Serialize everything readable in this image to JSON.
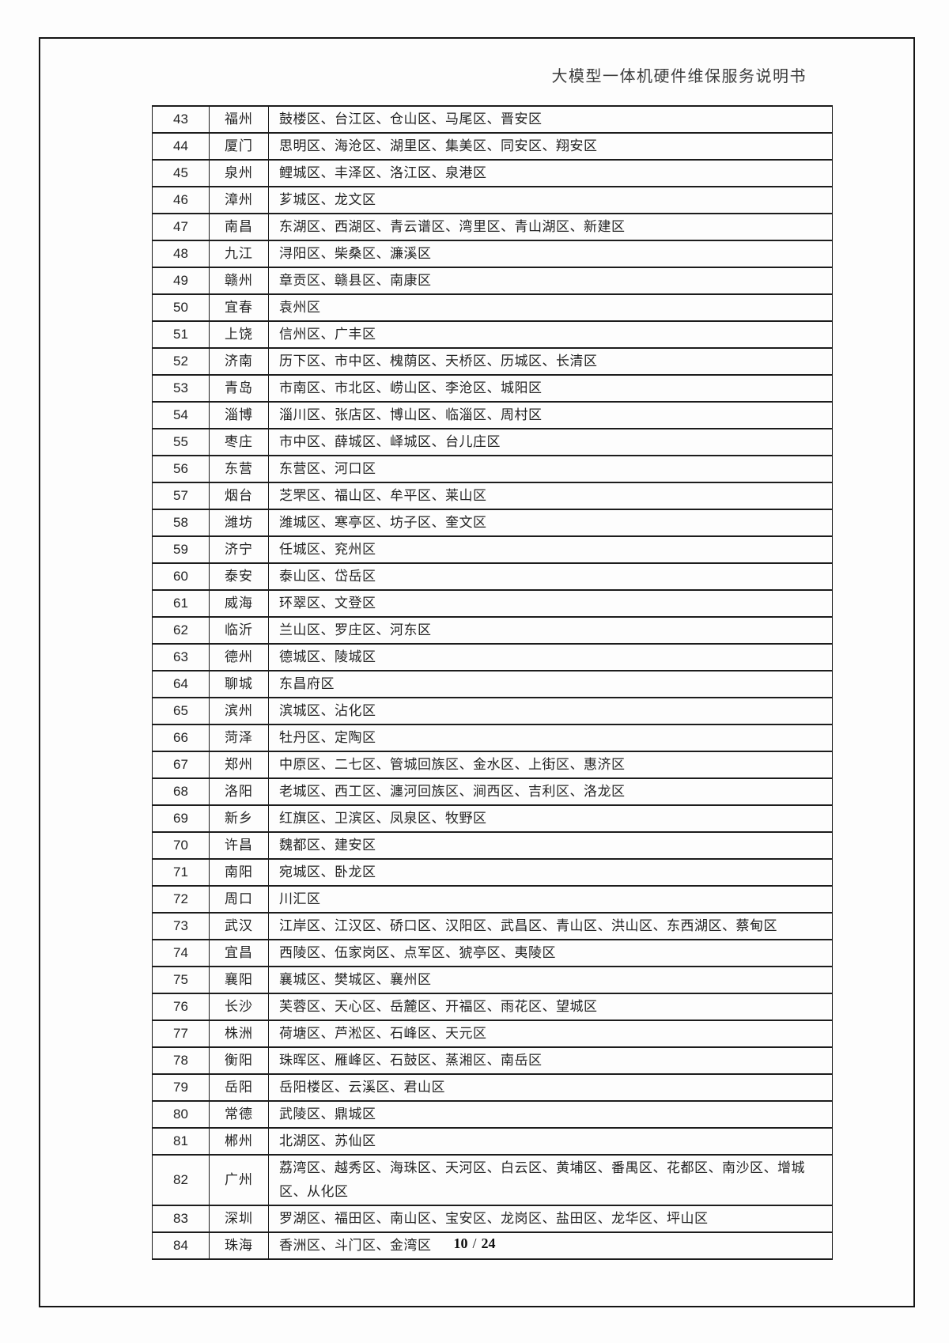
{
  "header": {
    "title": "大模型一体机硬件维保服务说明书"
  },
  "footer": {
    "current_page": "10",
    "separator": "/",
    "total_pages": "24"
  },
  "colors": {
    "text": "#232323",
    "border": "#1c1c1c",
    "background": "#fdfdfd"
  },
  "table": {
    "rows": [
      {
        "no": "43",
        "city": "福州",
        "districts": "鼓楼区、台江区、仓山区、马尾区、晋安区"
      },
      {
        "no": "44",
        "city": "厦门",
        "districts": "思明区、海沧区、湖里区、集美区、同安区、翔安区"
      },
      {
        "no": "45",
        "city": "泉州",
        "districts": "鲤城区、丰泽区、洛江区、泉港区"
      },
      {
        "no": "46",
        "city": "漳州",
        "districts": "芗城区、龙文区"
      },
      {
        "no": "47",
        "city": "南昌",
        "districts": "东湖区、西湖区、青云谱区、湾里区、青山湖区、新建区"
      },
      {
        "no": "48",
        "city": "九江",
        "districts": "浔阳区、柴桑区、濂溪区"
      },
      {
        "no": "49",
        "city": "赣州",
        "districts": "章贡区、赣县区、南康区"
      },
      {
        "no": "50",
        "city": "宜春",
        "districts": "袁州区"
      },
      {
        "no": "51",
        "city": "上饶",
        "districts": "信州区、广丰区"
      },
      {
        "no": "52",
        "city": "济南",
        "districts": "历下区、市中区、槐荫区、天桥区、历城区、长清区"
      },
      {
        "no": "53",
        "city": "青岛",
        "districts": "市南区、市北区、崂山区、李沧区、城阳区"
      },
      {
        "no": "54",
        "city": "淄博",
        "districts": "淄川区、张店区、博山区、临淄区、周村区"
      },
      {
        "no": "55",
        "city": "枣庄",
        "districts": "市中区、薛城区、峄城区、台儿庄区"
      },
      {
        "no": "56",
        "city": "东营",
        "districts": "东营区、河口区"
      },
      {
        "no": "57",
        "city": "烟台",
        "districts": "芝罘区、福山区、牟平区、莱山区"
      },
      {
        "no": "58",
        "city": "潍坊",
        "districts": "潍城区、寒亭区、坊子区、奎文区"
      },
      {
        "no": "59",
        "city": "济宁",
        "districts": "任城区、兖州区"
      },
      {
        "no": "60",
        "city": "泰安",
        "districts": "泰山区、岱岳区"
      },
      {
        "no": "61",
        "city": "威海",
        "districts": "环翠区、文登区"
      },
      {
        "no": "62",
        "city": "临沂",
        "districts": "兰山区、罗庄区、河东区"
      },
      {
        "no": "63",
        "city": "德州",
        "districts": "德城区、陵城区"
      },
      {
        "no": "64",
        "city": "聊城",
        "districts": "东昌府区"
      },
      {
        "no": "65",
        "city": "滨州",
        "districts": "滨城区、沾化区"
      },
      {
        "no": "66",
        "city": "菏泽",
        "districts": "牡丹区、定陶区"
      },
      {
        "no": "67",
        "city": "郑州",
        "districts": "中原区、二七区、管城回族区、金水区、上街区、惠济区"
      },
      {
        "no": "68",
        "city": "洛阳",
        "districts": "老城区、西工区、瀍河回族区、涧西区、吉利区、洛龙区"
      },
      {
        "no": "69",
        "city": "新乡",
        "districts": "红旗区、卫滨区、凤泉区、牧野区"
      },
      {
        "no": "70",
        "city": "许昌",
        "districts": "魏都区、建安区"
      },
      {
        "no": "71",
        "city": "南阳",
        "districts": "宛城区、卧龙区"
      },
      {
        "no": "72",
        "city": "周口",
        "districts": "川汇区"
      },
      {
        "no": "73",
        "city": "武汉",
        "districts": "江岸区、江汉区、硚口区、汉阳区、武昌区、青山区、洪山区、东西湖区、蔡甸区"
      },
      {
        "no": "74",
        "city": "宜昌",
        "districts": "西陵区、伍家岗区、点军区、猇亭区、夷陵区"
      },
      {
        "no": "75",
        "city": "襄阳",
        "districts": "襄城区、樊城区、襄州区"
      },
      {
        "no": "76",
        "city": "长沙",
        "districts": "芙蓉区、天心区、岳麓区、开福区、雨花区、望城区"
      },
      {
        "no": "77",
        "city": "株洲",
        "districts": "荷塘区、芦淞区、石峰区、天元区"
      },
      {
        "no": "78",
        "city": "衡阳",
        "districts": "珠晖区、雁峰区、石鼓区、蒸湘区、南岳区"
      },
      {
        "no": "79",
        "city": "岳阳",
        "districts": "岳阳楼区、云溪区、君山区"
      },
      {
        "no": "80",
        "city": "常德",
        "districts": "武陵区、鼎城区"
      },
      {
        "no": "81",
        "city": "郴州",
        "districts": "北湖区、苏仙区"
      },
      {
        "no": "82",
        "city": "广州",
        "districts": "荔湾区、越秀区、海珠区、天河区、白云区、黄埔区、番禺区、花都区、南沙区、增城区、从化区"
      },
      {
        "no": "83",
        "city": "深圳",
        "districts": "罗湖区、福田区、南山区、宝安区、龙岗区、盐田区、龙华区、坪山区"
      },
      {
        "no": "84",
        "city": "珠海",
        "districts": "香洲区、斗门区、金湾区"
      }
    ]
  }
}
